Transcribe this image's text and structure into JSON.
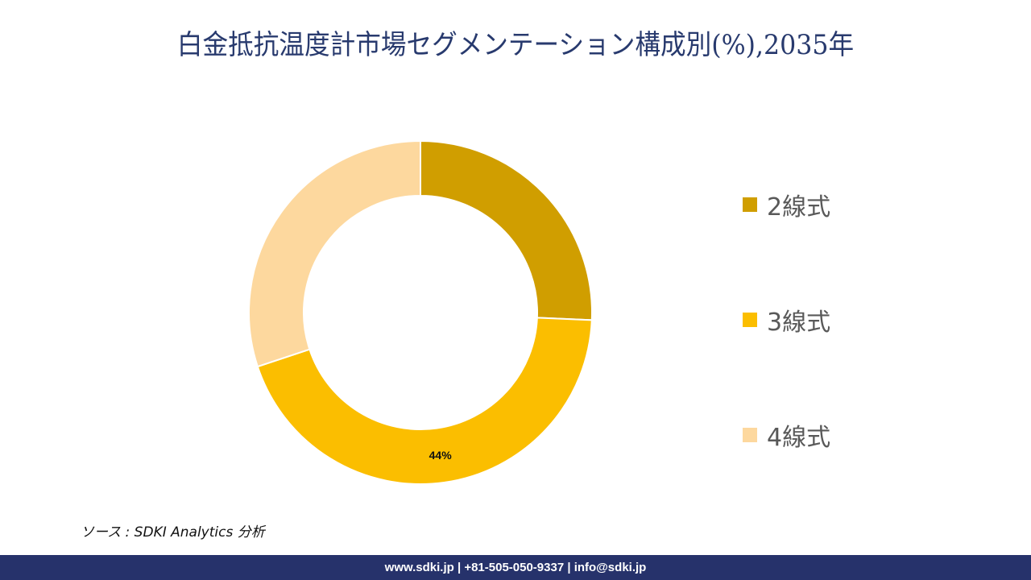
{
  "title": "白金抵抗温度計市場セグメンテーション構成別(%),2035年",
  "chart_data": {
    "type": "pie",
    "subtype": "donut",
    "title": "白金抵抗温度計市場セグメンテーション構成別(%),2035年",
    "categories": [
      "2線式",
      "3線式",
      "4線式"
    ],
    "values": [
      25.7,
      44.2,
      30.1
    ],
    "colors": [
      "#d09e00",
      "#fbbe00",
      "#fdd89e"
    ],
    "data_labels": [
      {
        "category": "3線式",
        "text": "44%"
      }
    ],
    "start_angle_deg": 0,
    "direction": "clockwise",
    "legend_position": "right"
  },
  "legend": {
    "items": [
      {
        "label": "2線式",
        "color": "#d09e00"
      },
      {
        "label": "3線式",
        "color": "#fbbe00"
      },
      {
        "label": "4線式",
        "color": "#fdd89e"
      }
    ]
  },
  "source": "ソース : SDKI Analytics  分析",
  "footer": {
    "text": "www.sdki.jp | +81-505-050-9337 | info@sdki.jp",
    "background": "#26326b"
  }
}
